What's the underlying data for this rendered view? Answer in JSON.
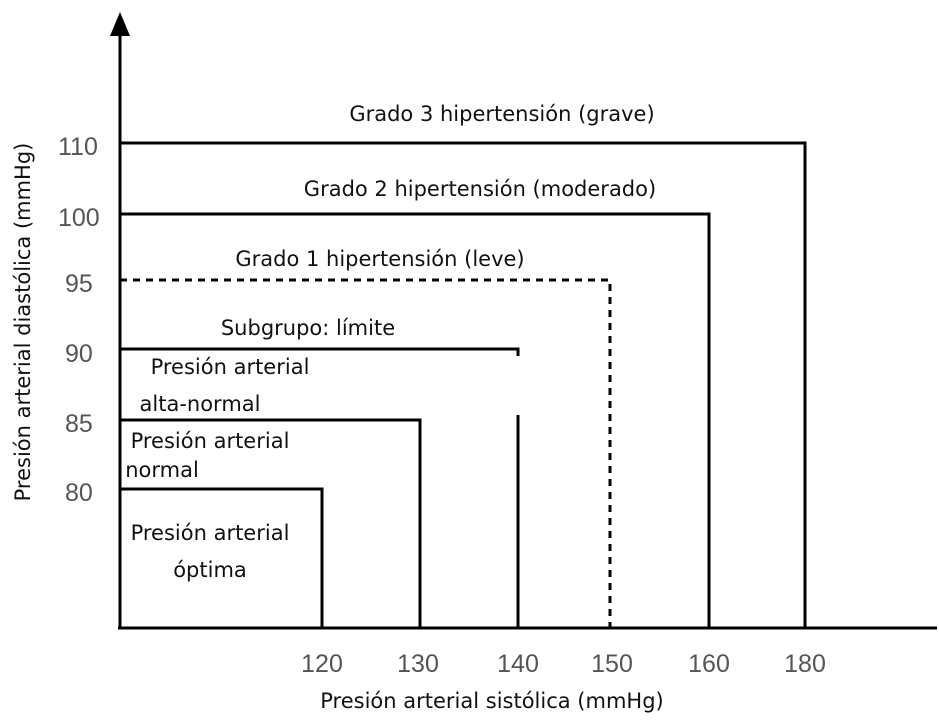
{
  "diagram": {
    "x_axis_label": "Presión arterial sistólica (mmHg)",
    "y_axis_label": "Presión arterial diastólica (mmHg)",
    "x_ticks": [
      "120",
      "130",
      "140",
      "150",
      "160",
      "180"
    ],
    "y_ticks": [
      "110",
      "100",
      "95",
      "90",
      "85",
      "80"
    ],
    "zones": [
      {
        "label": "Grado 3 hipertensión (grave)",
        "systolic": 180,
        "diastolic": 110
      },
      {
        "label": "Grado 2 hipertensión (moderado)",
        "systolic": 160,
        "diastolic": 100
      },
      {
        "label": "Grado 1 hipertensión (leve)",
        "systolic": 150,
        "diastolic": 95,
        "dashed": true
      },
      {
        "label": "Subgrupo: límite",
        "systolic": 140,
        "diastolic": 90
      },
      {
        "label_line1": "Presión arterial",
        "label_line2": "alta-normal",
        "systolic": 130,
        "diastolic": 85
      },
      {
        "label_line1": "Presión arterial",
        "label_line2": "normal",
        "systolic": 120,
        "diastolic": 80
      },
      {
        "label_line1": "Presión arterial",
        "label_line2": "óptima"
      }
    ]
  }
}
